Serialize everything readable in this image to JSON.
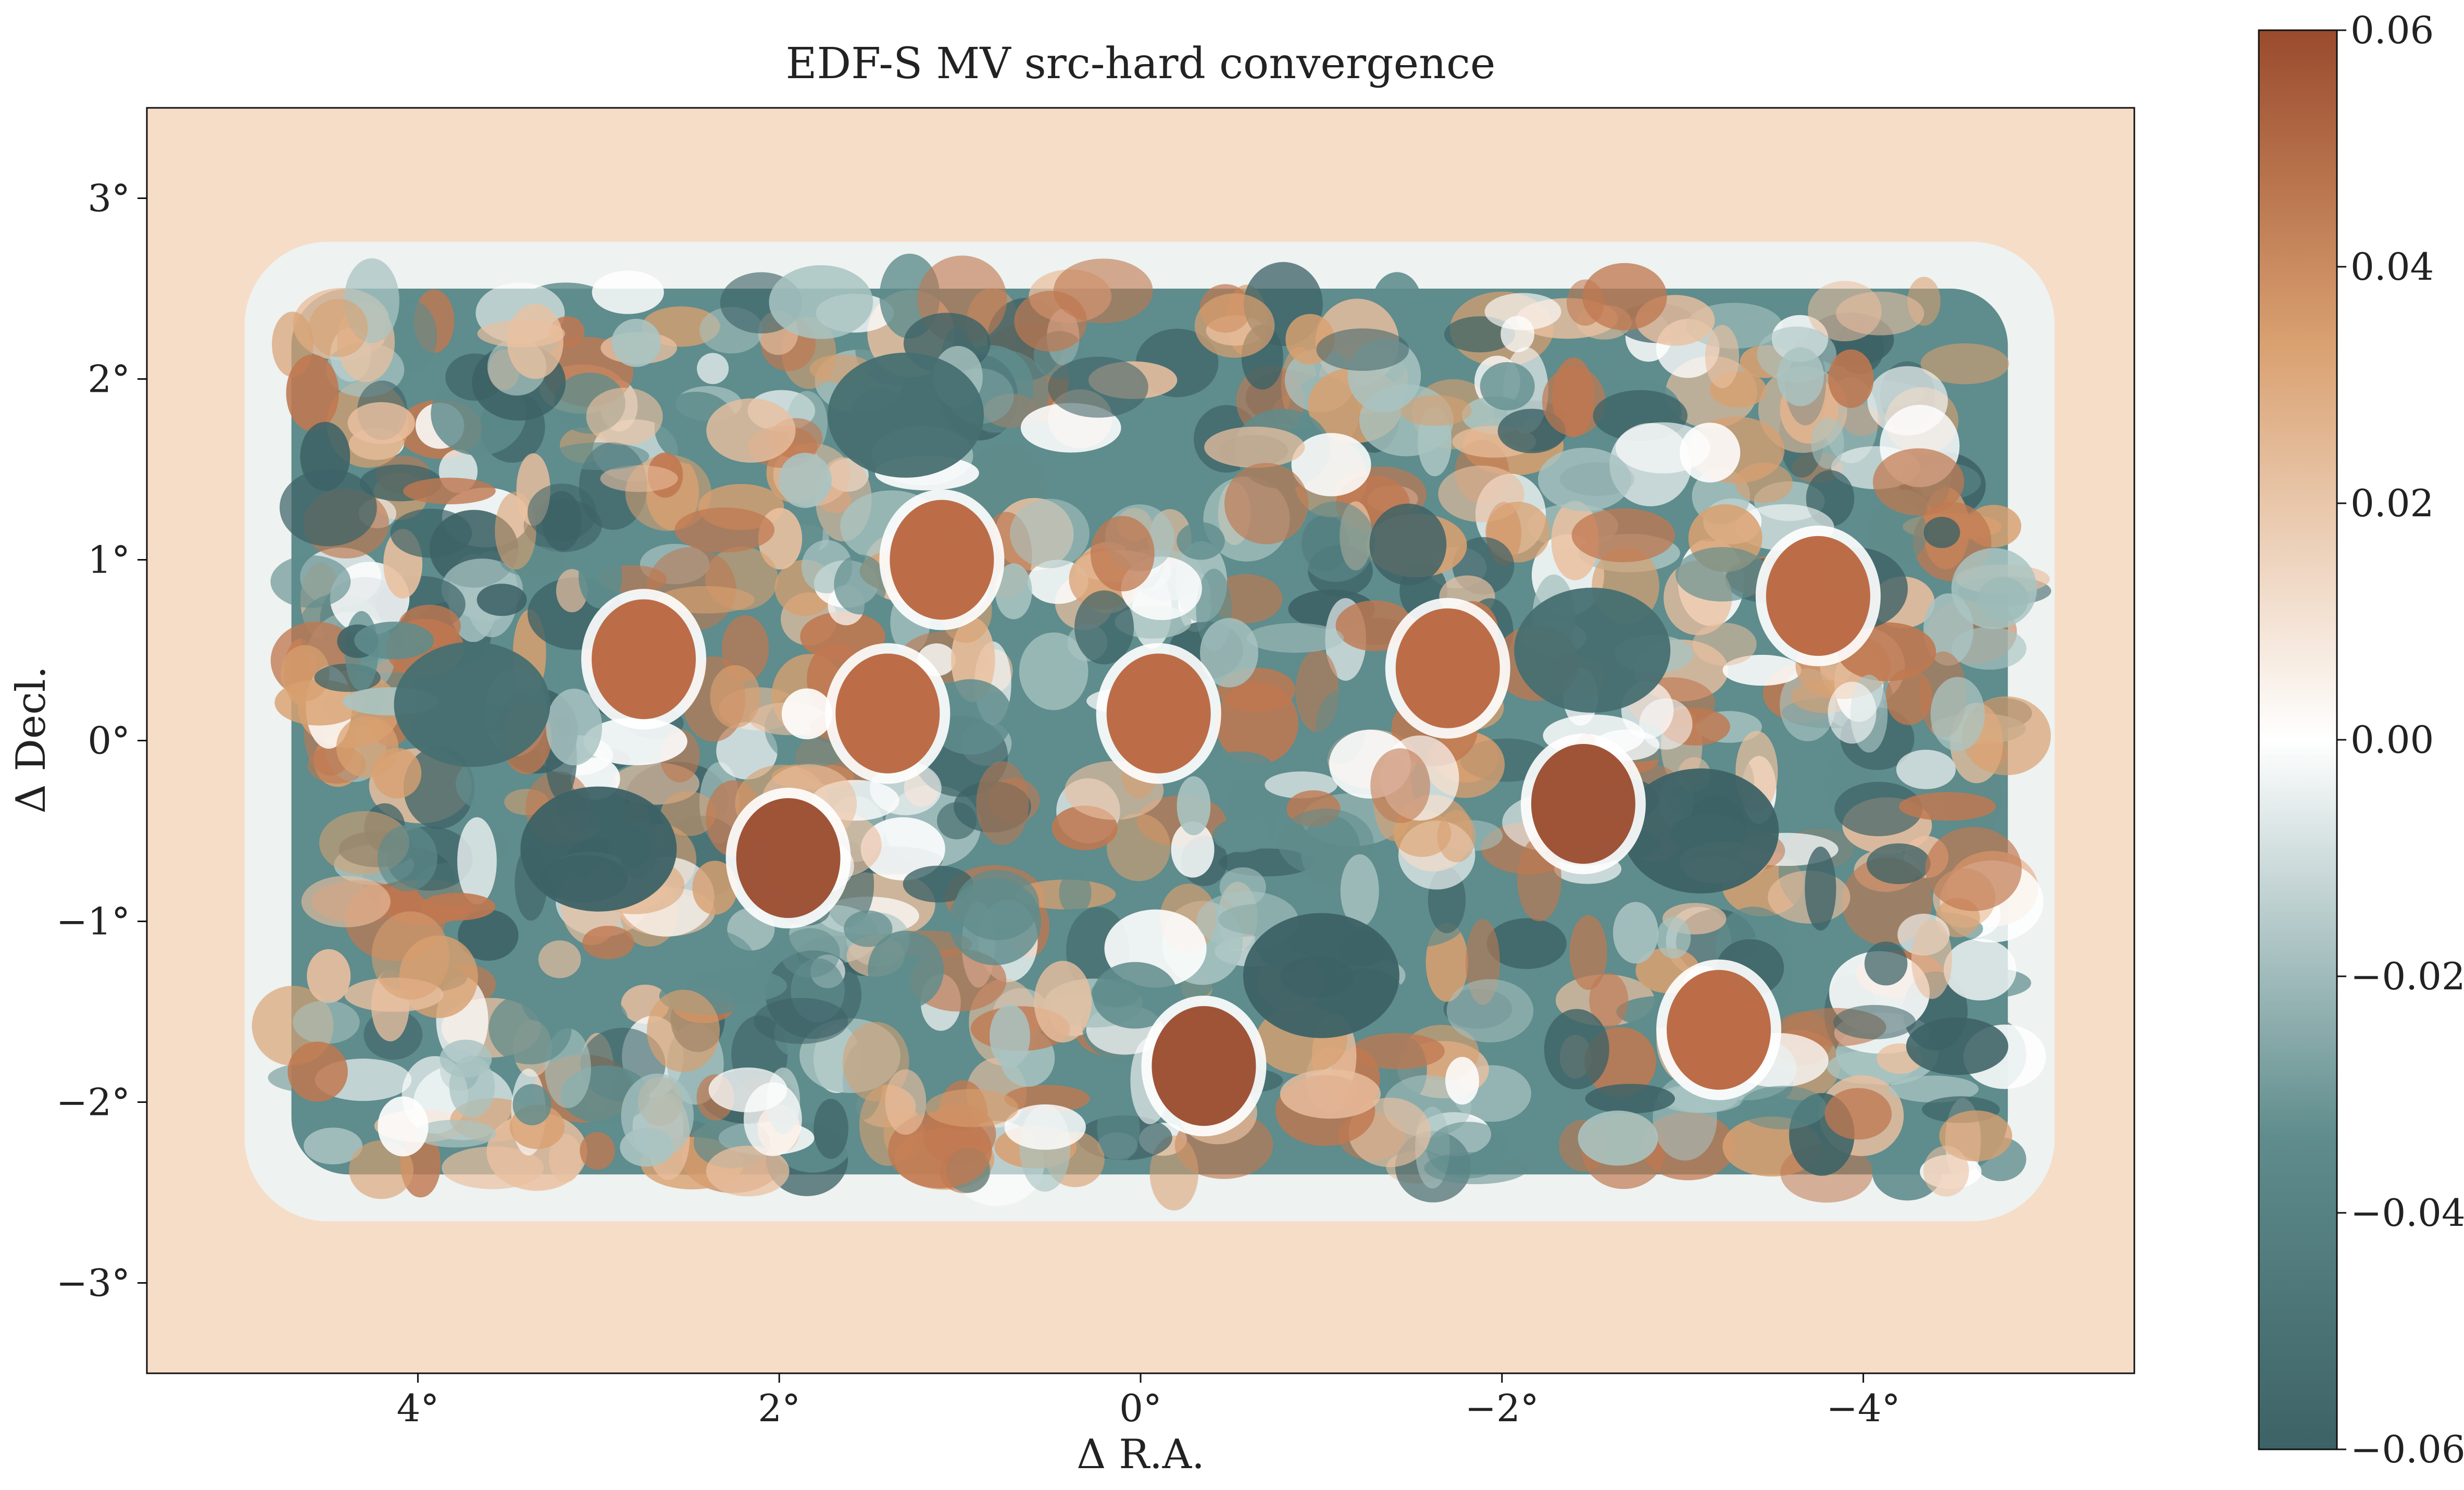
{
  "chart_data": {
    "type": "heatmap",
    "title": "EDF-S MV src-hard convergence",
    "xlabel": "Δ R.A.",
    "ylabel": "Δ Decl.",
    "xlim": [
      5.5,
      -5.5
    ],
    "ylim": [
      -3.5,
      3.5
    ],
    "x_ticks": [
      {
        "value": 4,
        "label": "4°"
      },
      {
        "value": 2,
        "label": "2°"
      },
      {
        "value": 0,
        "label": "0°"
      },
      {
        "value": -2,
        "label": "−2°"
      },
      {
        "value": -4,
        "label": "−4°"
      }
    ],
    "y_ticks": [
      {
        "value": 3,
        "label": "3°"
      },
      {
        "value": 2,
        "label": "2°"
      },
      {
        "value": 1,
        "label": "1°"
      },
      {
        "value": 0,
        "label": "0°"
      },
      {
        "value": -1,
        "label": "−1°"
      },
      {
        "value": -2,
        "label": "−2°"
      },
      {
        "value": -3,
        "label": "−3°"
      }
    ],
    "colorbar": {
      "vmin": -0.06,
      "vmax": 0.06,
      "ticks": [
        {
          "value": 0.06,
          "label": "0.06"
        },
        {
          "value": 0.04,
          "label": "0.04"
        },
        {
          "value": 0.02,
          "label": "0.02"
        },
        {
          "value": 0.0,
          "label": "0.00"
        },
        {
          "value": -0.02,
          "label": "−0.02"
        },
        {
          "value": -0.04,
          "label": "−0.04"
        },
        {
          "value": -0.06,
          "label": "−0.06"
        }
      ],
      "colors": {
        "min": "#3d6266",
        "low": "#5f8c8c",
        "mid": "#ffffff",
        "high": "#d9a070",
        "max": "#9a4b2d"
      }
    },
    "footprint": {
      "ra_range": [
        -4.8,
        4.7
      ],
      "dec_range": [
        -2.4,
        2.5
      ]
    },
    "strong_positive_peaks": [
      {
        "ra": 1.95,
        "dec": -0.65,
        "value": 0.06
      },
      {
        "ra": -0.35,
        "dec": -1.8,
        "value": 0.055
      },
      {
        "ra": 2.75,
        "dec": 0.45,
        "value": 0.045
      },
      {
        "ra": 1.4,
        "dec": 0.15,
        "value": 0.045
      },
      {
        "ra": -2.45,
        "dec": -0.35,
        "value": 0.05
      },
      {
        "ra": -0.1,
        "dec": 0.15,
        "value": 0.045
      },
      {
        "ra": 1.1,
        "dec": 1.0,
        "value": 0.04
      },
      {
        "ra": -1.7,
        "dec": 0.4,
        "value": 0.04
      },
      {
        "ra": -3.2,
        "dec": -1.6,
        "value": 0.045
      },
      {
        "ra": -3.75,
        "dec": 0.8,
        "value": 0.04
      }
    ],
    "strong_negative_troughs": [
      {
        "ra": 3.0,
        "dec": -0.6,
        "value": -0.06
      },
      {
        "ra": -1.0,
        "dec": -1.3,
        "value": -0.055
      },
      {
        "ra": -3.1,
        "dec": -0.5,
        "value": -0.055
      },
      {
        "ra": -2.5,
        "dec": 0.5,
        "value": -0.05
      },
      {
        "ra": 3.7,
        "dec": 0.2,
        "value": -0.05
      },
      {
        "ra": 1.3,
        "dec": 1.8,
        "value": -0.05
      }
    ]
  }
}
